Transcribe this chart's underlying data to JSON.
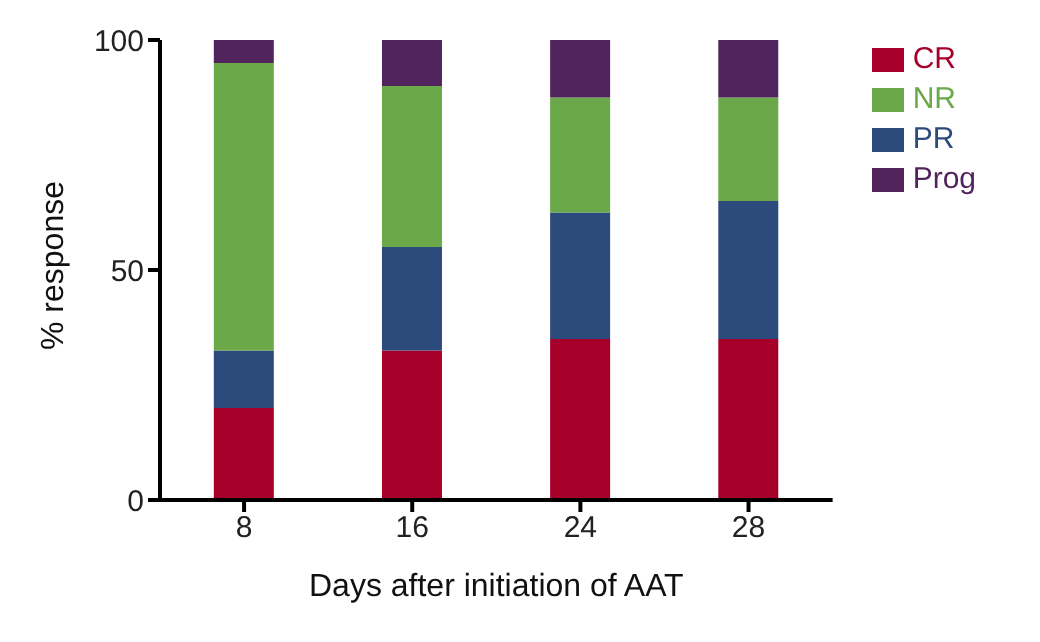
{
  "chart_data": {
    "type": "bar",
    "stacked": true,
    "xlabel": "Days after initiation of AAT",
    "ylabel": "% response",
    "categories": [
      "8",
      "16",
      "24",
      "28"
    ],
    "series": [
      {
        "name": "CR",
        "color": "#a6002a",
        "values": [
          20,
          32.5,
          35,
          35
        ]
      },
      {
        "name": "PR",
        "color": "#2d4a7c",
        "values": [
          12.5,
          22.5,
          27.5,
          30
        ]
      },
      {
        "name": "NR",
        "color": "#6aa84a",
        "values": [
          62.5,
          35,
          25,
          22.5
        ]
      },
      {
        "name": "Prog",
        "color": "#52245e",
        "values": [
          5,
          10,
          12.5,
          12.5
        ]
      }
    ],
    "ylim": [
      0,
      100
    ],
    "yticks": [
      0,
      50,
      100
    ],
    "grid": false,
    "legend": "right"
  }
}
